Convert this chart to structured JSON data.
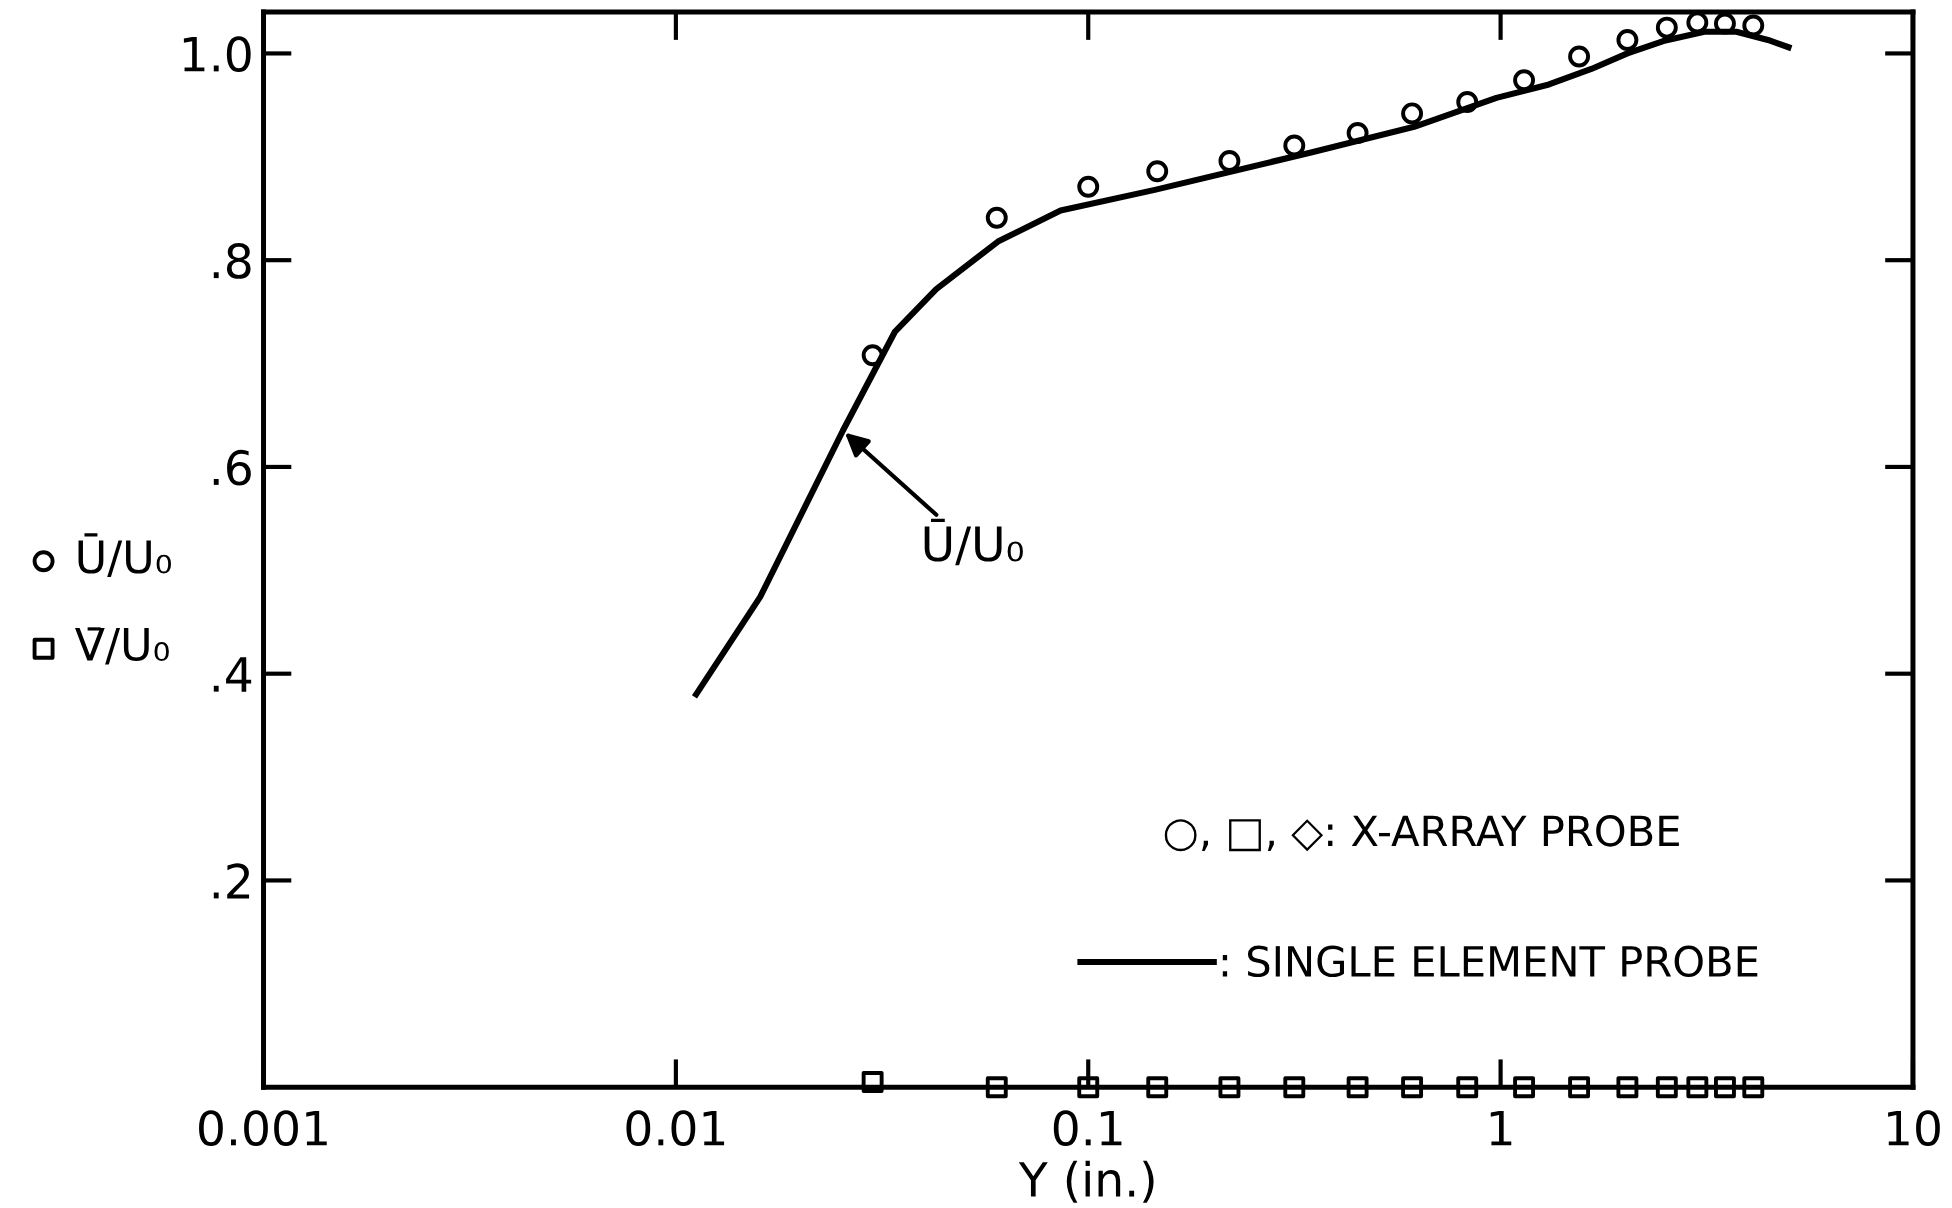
{
  "chart_data": {
    "type": "scatter",
    "xlabel": "Y (in.)",
    "log": "x",
    "xlim": [
      0.001,
      10
    ],
    "xticks": [
      0.001,
      0.01,
      0.1,
      1,
      10
    ],
    "ylim": [
      0,
      1.04
    ],
    "yticks": [
      {
        "value": 0.2,
        "label": ".2"
      },
      {
        "value": 0.4,
        "label": ".4"
      },
      {
        "value": 0.6,
        "label": ".6"
      },
      {
        "value": 0.8,
        "label": ".8"
      },
      {
        "value": 1.0,
        "label": "1.0"
      }
    ],
    "grid": false,
    "legend": "left",
    "series": [
      {
        "name": "Ū/U₀",
        "marker": "circle",
        "color": "#000000",
        "x": [
          0.03,
          0.06,
          0.1,
          0.147,
          0.22,
          0.316,
          0.45,
          0.61,
          0.83,
          1.14,
          1.55,
          2.03,
          2.53,
          3.0,
          3.5,
          4.1
        ],
        "values": [
          0.708,
          0.841,
          0.871,
          0.886,
          0.896,
          0.911,
          0.923,
          0.942,
          0.953,
          0.974,
          0.997,
          1.013,
          1.025,
          1.03,
          1.029,
          1.027
        ]
      },
      {
        "name": "V̄/U₀",
        "marker": "square",
        "color": "#000000",
        "x": [
          0.03,
          0.06,
          0.1,
          0.147,
          0.22,
          0.316,
          0.45,
          0.61,
          0.83,
          1.14,
          1.55,
          2.03,
          2.53,
          3.0,
          3.5,
          4.1
        ],
        "values": [
          0.005,
          0.0,
          0.0,
          0.0,
          0.0,
          0.0,
          0.0,
          0.0,
          0.0,
          0.0,
          0.0,
          0.0,
          0.0,
          0.0,
          0.0,
          0.0
        ]
      },
      {
        "name": ": SINGLE ELEMENT PROBE",
        "type": "line",
        "marker": "none",
        "line_style": "solid",
        "color": "#000000",
        "x": [
          0.0112,
          0.016,
          0.0254,
          0.034,
          0.0428,
          0.0604,
          0.0857,
          0.145,
          0.345,
          0.617,
          0.977,
          1.31,
          1.66,
          2.03,
          2.48,
          3.12,
          3.73,
          4.45,
          4.99
        ],
        "values": [
          0.38,
          0.474,
          0.635,
          0.731,
          0.772,
          0.818,
          0.848,
          0.868,
          0.904,
          0.929,
          0.957,
          0.97,
          0.985,
          1.0,
          1.012,
          1.021,
          1.021,
          1.013,
          1.006
        ]
      }
    ],
    "annotations": [
      {
        "text": "Ū/U₀",
        "x": 0.0254,
        "y": 0.635
      },
      "○, □, ◇: X-ARRAY PROBE"
    ]
  }
}
